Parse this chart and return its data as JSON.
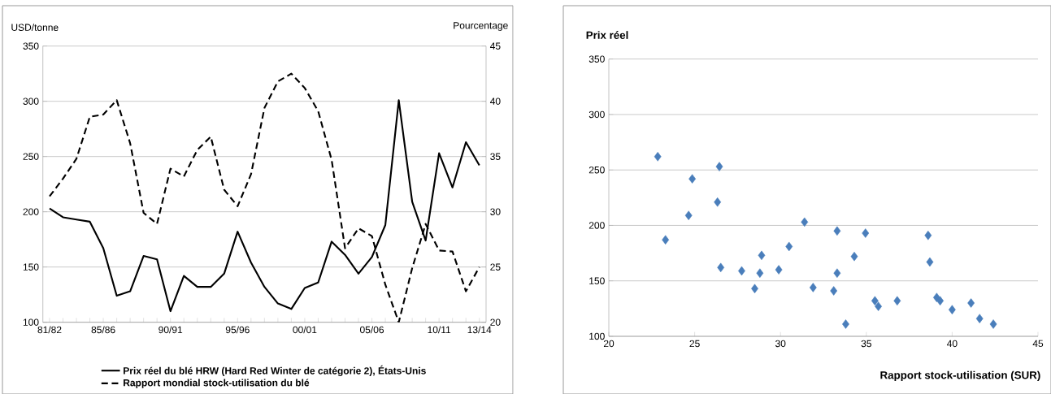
{
  "chart_data": [
    {
      "type": "line",
      "categories": [
        "81/82",
        null,
        null,
        null,
        "85/86",
        null,
        null,
        null,
        null,
        "90/91",
        null,
        null,
        null,
        null,
        "95/96",
        null,
        null,
        null,
        null,
        "00/01",
        null,
        null,
        null,
        null,
        "05/06",
        null,
        null,
        null,
        null,
        "10/11",
        null,
        null,
        "13/14"
      ],
      "series": [
        {
          "name": "Prix réel du blé HRW (Hard Red Winter de catégorie 2), États-Unis",
          "color": "#000000",
          "line_style": "solid",
          "values": [
            203,
            195,
            193,
            191,
            167,
            124,
            128,
            160,
            157,
            110,
            142,
            132,
            132,
            144,
            182,
            154,
            132,
            117,
            112,
            131,
            136,
            173,
            161,
            144,
            159,
            188,
            301,
            209,
            174,
            253,
            222,
            263,
            242
          ]
        },
        {
          "name": "Rapport mondial stock-utilisation du blé",
          "color": "#000000",
          "line_style": "dashed",
          "axis": "y2",
          "values": [
            31.4,
            33.0,
            34.8,
            38.6,
            38.8,
            40.1,
            36.2,
            29.9,
            28.9,
            33.9,
            33.2,
            35.6,
            36.8,
            32.0,
            30.5,
            33.4,
            39.4,
            41.8,
            42.5,
            41.2,
            39.1,
            34.7,
            26.7,
            28.5,
            27.8,
            23.4,
            20.0,
            24.9,
            28.9,
            26.5,
            26.4,
            22.8,
            25.0
          ]
        }
      ],
      "ylabel": "USD/tonne",
      "y2label": "Pourcentage",
      "ylim": [
        100,
        350
      ],
      "yticks": [
        100,
        150,
        200,
        250,
        300,
        350
      ],
      "y2lim": [
        20,
        45
      ],
      "y2ticks": [
        20,
        25,
        30,
        35,
        40,
        45
      ],
      "grid": "y",
      "legend": "bottom"
    },
    {
      "type": "scatter",
      "x": [
        22.85,
        23.3,
        24.86,
        24.65,
        26.44,
        26.33,
        26.52,
        27.74,
        28.5,
        28.9,
        28.8,
        29.9,
        30.5,
        31.4,
        31.9,
        33.1,
        33.3,
        33.3,
        33.8,
        34.3,
        34.95,
        35.5,
        35.7,
        36.8,
        38.6,
        38.7,
        39.1,
        39.3,
        40.0,
        41.1,
        41.6,
        42.4
      ],
      "values": [
        262,
        187,
        242,
        209,
        253,
        221,
        162,
        159,
        143,
        173,
        157,
        160,
        181,
        203,
        144,
        141,
        195,
        157,
        111,
        172,
        193,
        132,
        127,
        132,
        191,
        167,
        135,
        132,
        124,
        130,
        116,
        111
      ],
      "color": "#4a7ebb",
      "marker": "diamond",
      "xlabel": "Rapport stock-utilisation (SUR)",
      "ylabel": "Prix réel",
      "xlim": [
        20,
        45
      ],
      "xticks": [
        20,
        25,
        30,
        35,
        40,
        45
      ],
      "ylim": [
        100,
        350
      ],
      "yticks": [
        100,
        150,
        200,
        250,
        300,
        350
      ],
      "grid": "y"
    }
  ]
}
